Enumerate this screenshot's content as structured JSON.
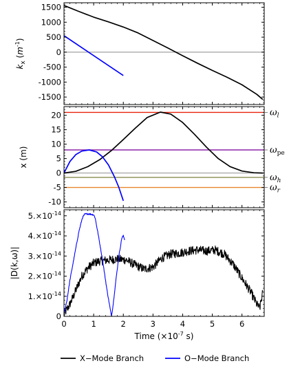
{
  "chart_data": [
    {
      "type": "line",
      "ylabel": "k",
      "ylabel_sub": "x",
      "ylabel_unit_base": "(m",
      "ylabel_unit_exp": "-1",
      "ylabel_unit_close": ")",
      "ylim": [
        -1750,
        1650
      ],
      "xlim": [
        0,
        6.75
      ],
      "y_ticks": [
        -1500,
        -1000,
        -500,
        0,
        500,
        1000,
        1500
      ],
      "y_tick_labels": [
        "-1500",
        "-1000",
        "-500",
        "0",
        "500",
        "1000",
        "1500"
      ],
      "reference_lines": [
        {
          "y": 0,
          "color": "#aaaaaa"
        }
      ],
      "series": [
        {
          "name": "X-Mode Branch",
          "color": "#000000",
          "x": [
            0,
            0.5,
            1,
            1.5,
            2,
            2.5,
            3,
            3.5,
            4,
            4.5,
            5,
            5.5,
            6,
            6.5,
            6.7
          ],
          "y": [
            1560,
            1360,
            1170,
            1010,
            840,
            640,
            390,
            140,
            -120,
            -370,
            -610,
            -840,
            -1090,
            -1410,
            -1580
          ]
        },
        {
          "name": "O-Mode Branch",
          "color": "#0000ff",
          "x": [
            0,
            2
          ],
          "y": [
            550,
            -780
          ]
        }
      ]
    },
    {
      "type": "line",
      "ylabel": "x (m)",
      "ylim": [
        -12,
        23
      ],
      "xlim": [
        0,
        6.75
      ],
      "y_ticks": [
        -10,
        -5,
        0,
        5,
        10,
        15,
        20
      ],
      "y_tick_labels": [
        "-10",
        "-5",
        "0",
        "5",
        "10",
        "15",
        "20"
      ],
      "reference_lines": [
        {
          "y": 21,
          "color": "#e8200a",
          "label_main": "ω",
          "label_sub": "l"
        },
        {
          "y": 8,
          "color": "#8c23a8",
          "label_main": "ω",
          "label_sub": "pe"
        },
        {
          "y": 0,
          "color": "#aaaaaa",
          "label_main": "",
          "label_sub": ""
        },
        {
          "y": -1.5,
          "color": "#8a8a50",
          "label_main": "ω",
          "label_sub": "h"
        },
        {
          "y": -5,
          "color": "#e8852a",
          "label_main": "ω",
          "label_sub": "r"
        }
      ],
      "series": [
        {
          "name": "X-Mode Branch",
          "color": "#000000",
          "x": [
            0,
            0.4,
            0.8,
            1.2,
            1.6,
            2.0,
            2.4,
            2.8,
            3.25,
            3.6,
            4.0,
            4.4,
            4.8,
            5.2,
            5.6,
            6.0,
            6.4,
            6.7
          ],
          "y": [
            0,
            0.6,
            2.2,
            4.6,
            7.8,
            11.6,
            15.5,
            19.2,
            21.1,
            20.4,
            17.5,
            13.4,
            9.0,
            5.0,
            2.2,
            0.7,
            0.1,
            0
          ]
        },
        {
          "name": "O-Mode Branch",
          "color": "#0000ff",
          "x": [
            0,
            0.2,
            0.4,
            0.6,
            0.85,
            1.1,
            1.3,
            1.5,
            1.7,
            1.85,
            2.0
          ],
          "y": [
            0,
            4.0,
            6.4,
            7.6,
            8.0,
            7.3,
            5.6,
            2.8,
            -1.3,
            -5.0,
            -9.6
          ]
        }
      ]
    },
    {
      "type": "line",
      "ylabel": "|D(k,ω)|",
      "ylim": [
        0,
        5.3
      ],
      "xlim": [
        0,
        6.75
      ],
      "y_ticks": [
        0,
        1,
        2,
        3,
        4,
        5
      ],
      "y_tick_labels": [
        "0",
        "1.×10",
        "2.×10",
        "3.×10",
        "4.×10",
        "5.×10"
      ],
      "y_tick_exponent": "-14",
      "xlabel": "Time (×10",
      "xlabel_exp": "-7",
      "xlabel_unit": " s)",
      "x_ticks": [
        0,
        1,
        2,
        3,
        4,
        5,
        6
      ],
      "x_tick_labels": [
        "0",
        "1",
        "2",
        "3",
        "4",
        "5",
        "6"
      ],
      "series": [
        {
          "name": "X-Mode Branch",
          "color": "#000000",
          "x": [
            0,
            0.2,
            0.4,
            0.6,
            0.8,
            1.0,
            1.2,
            1.5,
            1.8,
            2.1,
            2.4,
            2.7,
            3.0,
            3.3,
            3.6,
            3.9,
            4.2,
            4.5,
            4.8,
            5.1,
            5.4,
            5.7,
            6.0,
            6.3,
            6.5,
            6.6,
            6.7
          ],
          "y": [
            0.1,
            0.6,
            1.3,
            2.0,
            2.4,
            2.65,
            2.75,
            2.8,
            2.85,
            2.8,
            2.55,
            2.35,
            2.45,
            2.9,
            3.1,
            3.15,
            3.25,
            3.3,
            3.25,
            3.3,
            3.1,
            2.6,
            1.9,
            1.2,
            0.6,
            0.4,
            1.2
          ],
          "noise": 0.22
        },
        {
          "name": "O-Mode Branch",
          "color": "#0000ff",
          "x": [
            0,
            0.1,
            0.2,
            0.35,
            0.5,
            0.62,
            0.7,
            0.8,
            0.9,
            1.0,
            1.05,
            1.15,
            1.3,
            1.45,
            1.6,
            1.65,
            1.75,
            1.85,
            1.95,
            2.0,
            2.05
          ],
          "y": [
            0.1,
            0.8,
            1.8,
            3.0,
            4.2,
            4.9,
            5.08,
            5.1,
            5.08,
            5.05,
            4.9,
            4.1,
            2.8,
            1.3,
            0.0,
            0.5,
            1.8,
            3.0,
            3.9,
            4.0,
            3.8
          ],
          "noise": 0.04
        }
      ]
    }
  ],
  "legend": {
    "position": "bottom",
    "items": [
      {
        "label": "X−Mode Branch",
        "color": "#000000"
      },
      {
        "label": "O−Mode Branch",
        "color": "#0000ff"
      }
    ]
  }
}
